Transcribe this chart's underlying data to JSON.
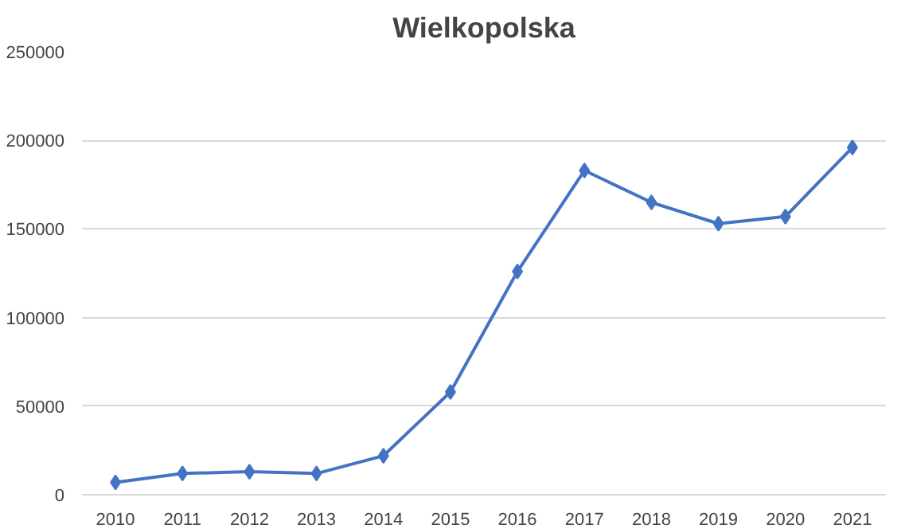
{
  "chart_data": {
    "type": "line",
    "title": "Wielkopolska",
    "categories": [
      "2010",
      "2011",
      "2012",
      "2013",
      "2014",
      "2015",
      "2016",
      "2017",
      "2018",
      "2019",
      "2020",
      "2021"
    ],
    "series": [
      {
        "color": "#4472c4",
        "values": [
          7000,
          12000,
          13000,
          12000,
          22000,
          58000,
          126000,
          183000,
          165000,
          153000,
          157000,
          196000
        ]
      }
    ],
    "ylim": [
      0,
      250000
    ],
    "yticks": [
      0,
      50000,
      100000,
      150000,
      200000,
      250000
    ],
    "grid": "y",
    "marker": "diamond",
    "line_style": "solid"
  }
}
